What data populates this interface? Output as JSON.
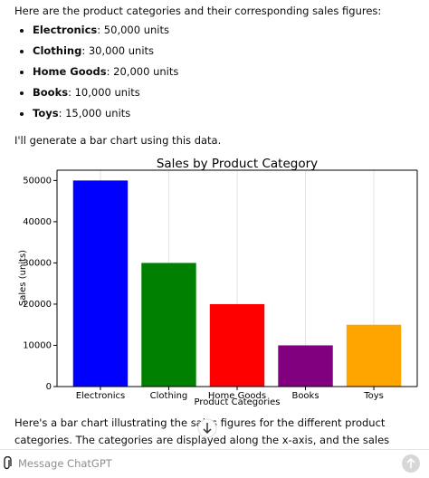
{
  "intro": "Here are the product categories and their corresponding sales figures:",
  "list": [
    {
      "label": "Electronics",
      "text": ": 50,000 units"
    },
    {
      "label": "Clothing",
      "text": ": 30,000 units"
    },
    {
      "label": "Home Goods",
      "text": ": 20,000 units"
    },
    {
      "label": "Books",
      "text": ": 10,000 units"
    },
    {
      "label": "Toys",
      "text": ": 15,000 units"
    }
  ],
  "followup": "I'll generate a bar chart using this data.",
  "chart_data": {
    "type": "bar",
    "title": "Sales by Product Category",
    "x_label": "Product Categories",
    "y_label": "Sales (units)",
    "categories": [
      "Electronics",
      "Clothing",
      "Home Goods",
      "Books",
      "Toys"
    ],
    "values": [
      50000,
      30000,
      20000,
      10000,
      15000
    ],
    "colors": [
      "#0000ff",
      "#008000",
      "#ff0000",
      "#800080",
      "#ffa500"
    ],
    "ylim": [
      0,
      52500
    ],
    "yticks": [
      0,
      10000,
      20000,
      30000,
      40000,
      50000
    ],
    "grid": "x"
  },
  "after": "Here's a bar chart illustrating the sales figures for the different product categories. The categories are displayed along the x-axis, and the sales figures (in units) are shown on the y-axis. The chart helps",
  "input_placeholder": "Message ChatGPT"
}
